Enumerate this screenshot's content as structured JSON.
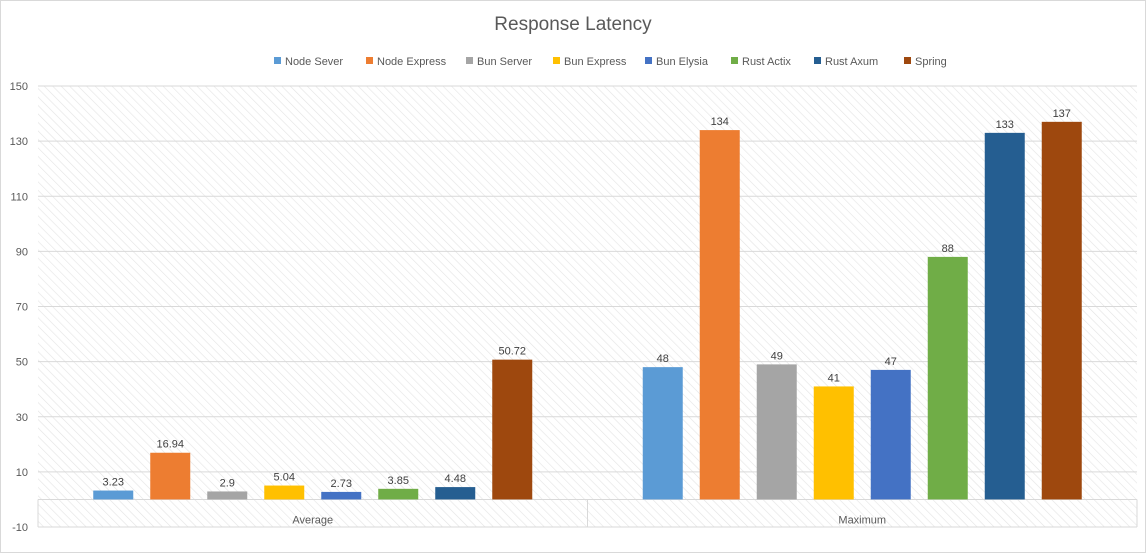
{
  "chart_data": {
    "type": "bar",
    "title": "Response Latency",
    "xlabel": "",
    "ylabel": "",
    "categories": [
      "Average",
      "Maximum"
    ],
    "ylim": [
      -10,
      150
    ],
    "yticks": [
      -10,
      10,
      30,
      50,
      70,
      90,
      110,
      130,
      150
    ],
    "grid": true,
    "legend_position": "top",
    "series": [
      {
        "name": "Node Sever",
        "color": "#5b9bd5",
        "values": [
          3.23,
          48
        ],
        "labels": [
          "3.23",
          "48"
        ]
      },
      {
        "name": "Node Express",
        "color": "#ed7d31",
        "values": [
          16.94,
          134
        ],
        "labels": [
          "16.94",
          "134"
        ]
      },
      {
        "name": "Bun Server",
        "color": "#a5a5a5",
        "values": [
          2.9,
          49
        ],
        "labels": [
          "2.9",
          "49"
        ]
      },
      {
        "name": "Bun Express",
        "color": "#ffc000",
        "values": [
          5.04,
          41
        ],
        "labels": [
          "5.04",
          "41"
        ]
      },
      {
        "name": "Bun Elysia",
        "color": "#4472c4",
        "values": [
          2.73,
          47
        ],
        "labels": [
          "2.73",
          "47"
        ]
      },
      {
        "name": "Rust Actix",
        "color": "#70ad47",
        "values": [
          3.85,
          88
        ],
        "labels": [
          "3.85",
          "88"
        ]
      },
      {
        "name": "Rust Axum",
        "color": "#255e91",
        "values": [
          4.48,
          133
        ],
        "labels": [
          "4.48",
          "133"
        ]
      },
      {
        "name": "Spring",
        "color": "#9e480e",
        "values": [
          50.72,
          137
        ],
        "labels": [
          "50.72",
          "137"
        ]
      }
    ]
  }
}
